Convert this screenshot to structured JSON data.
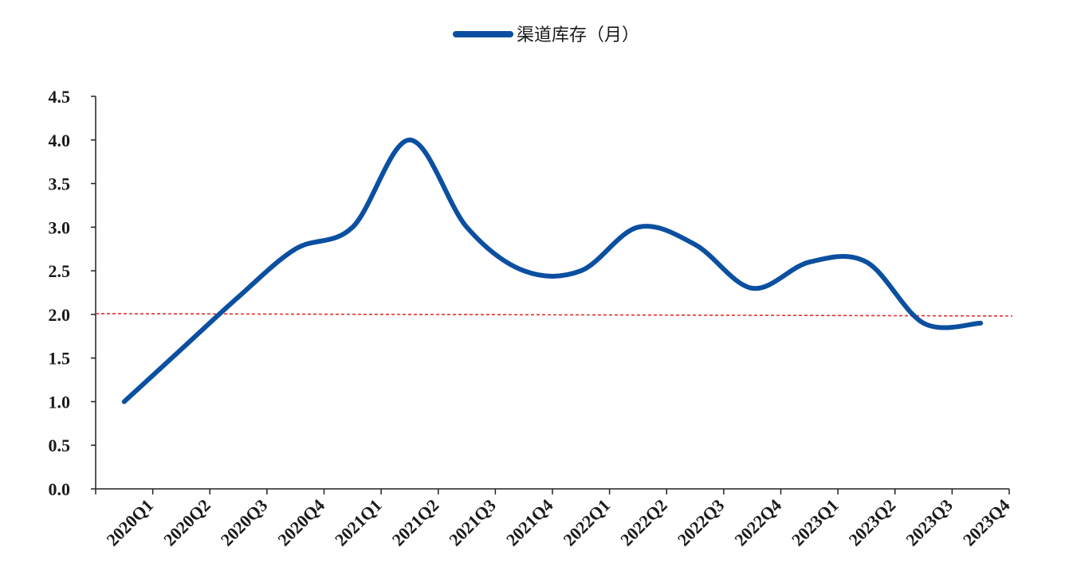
{
  "chart_data": {
    "type": "line",
    "categories": [
      "2020Q1",
      "2020Q2",
      "2020Q3",
      "2020Q4",
      "2021Q1",
      "2021Q2",
      "2021Q3",
      "2021Q4",
      "2022Q1",
      "2022Q2",
      "2022Q3",
      "2022Q4",
      "2023Q1",
      "2023Q2",
      "2023Q3",
      "2023Q4"
    ],
    "series": [
      {
        "name": "渠道库存（月）",
        "color": "#0b4fa0",
        "values": [
          1.0,
          1.6,
          2.2,
          2.75,
          3.0,
          4.0,
          3.0,
          2.5,
          2.5,
          3.0,
          2.8,
          2.3,
          2.6,
          2.6,
          1.9,
          1.9
        ]
      }
    ],
    "reference_line": {
      "value": 2.0,
      "color": "#e03030",
      "style": "dashed"
    },
    "yticks": [
      "0.0",
      "0.5",
      "1.0",
      "1.5",
      "2.0",
      "2.5",
      "3.0",
      "3.5",
      "4.0",
      "4.5"
    ],
    "ylim": [
      0,
      4.5
    ],
    "legend_position": "top-center",
    "grid": false
  }
}
